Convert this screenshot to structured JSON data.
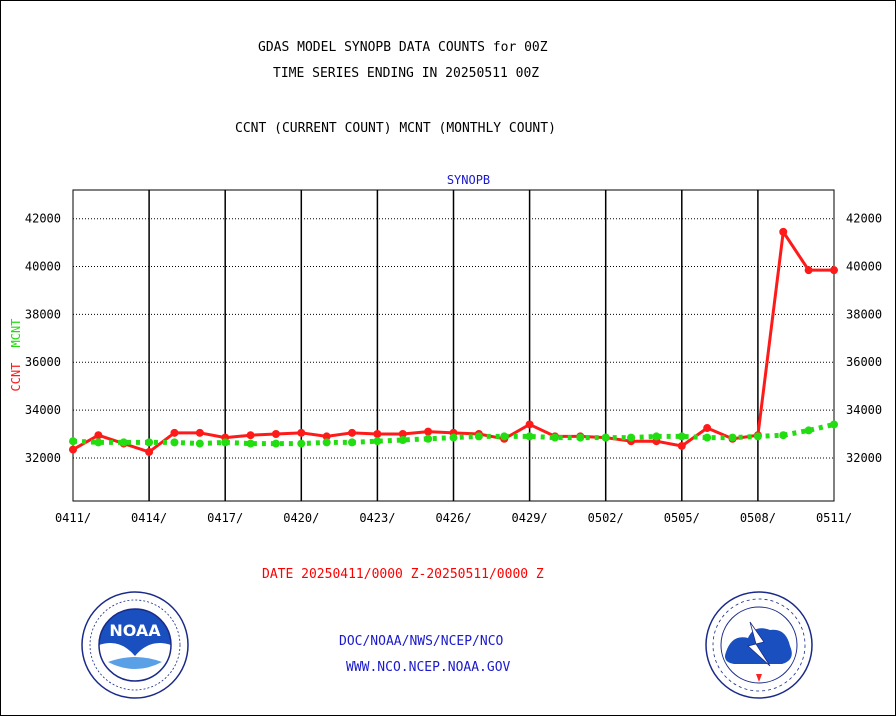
{
  "header": {
    "title_line1": "GDAS MODEL SYNOPB DATA COUNTS for 00Z",
    "title_line2": "TIME SERIES ENDING IN 20250511 00Z",
    "subtitle": "CCNT (CURRENT COUNT) MCNT (MONTHLY COUNT)"
  },
  "footer": {
    "date_range": "DATE 20250411/0000 Z-20250511/0000 Z",
    "agency_path": "DOC/NOAA/NWS/NCEP/NCO",
    "website": "WWW.NCO.NCEP.NOAA.GOV",
    "noaa_logo_text": "NOAA",
    "nws_logo_text": "NATIONAL WEATHER SERVICE"
  },
  "colors": {
    "ccnt": "#ff1a1a",
    "mcnt": "#22dd11",
    "panel_title": "#1a1acc",
    "footer_red": "#ff0000",
    "footer_blue": "#1a1acc"
  },
  "chart_data": {
    "type": "line",
    "title": "SYNOPB",
    "ylabel_parts": [
      "CCNT",
      "MCNT"
    ],
    "ylim": [
      30200,
      43200
    ],
    "yticks": [
      32000,
      34000,
      36000,
      38000,
      40000,
      42000
    ],
    "ytick_labels": [
      "32000",
      "34000",
      "36000",
      "38000",
      "40000",
      "42000"
    ],
    "xlim": [
      0,
      30
    ],
    "xtick_positions": [
      0,
      3,
      6,
      9,
      12,
      15,
      18,
      21,
      24,
      27,
      30
    ],
    "xtick_labels": [
      "0411/",
      "0414/",
      "0417/",
      "0420/",
      "0423/",
      "0426/",
      "0429/",
      "0502/",
      "0505/",
      "0508/",
      "0511/"
    ],
    "grid": true,
    "series": [
      {
        "name": "CCNT",
        "style": "solid",
        "x": [
          0,
          1,
          2,
          3,
          4,
          5,
          6,
          7,
          8,
          9,
          10,
          11,
          12,
          13,
          14,
          15,
          16,
          17,
          18,
          19,
          20,
          21,
          22,
          23,
          24,
          25,
          26,
          27,
          28,
          29,
          30
        ],
        "values": [
          32350,
          32950,
          32600,
          32250,
          33050,
          33050,
          32850,
          32950,
          33000,
          33050,
          32900,
          33050,
          33000,
          33000,
          33100,
          33050,
          33000,
          32800,
          33400,
          32900,
          32900,
          32850,
          32700,
          32700,
          32500,
          33250,
          32800,
          32950,
          41450,
          39850,
          39850
        ]
      },
      {
        "name": "MCNT",
        "style": "dotted",
        "x": [
          0,
          1,
          2,
          3,
          4,
          5,
          6,
          7,
          8,
          9,
          10,
          11,
          12,
          13,
          14,
          15,
          16,
          17,
          18,
          19,
          20,
          21,
          22,
          23,
          24,
          25,
          26,
          27,
          28,
          29,
          30
        ],
        "values": [
          32700,
          32650,
          32650,
          32650,
          32650,
          32600,
          32650,
          32600,
          32600,
          32600,
          32650,
          32650,
          32700,
          32750,
          32800,
          32850,
          32900,
          32900,
          32900,
          32850,
          32850,
          32850,
          32850,
          32900,
          32900,
          32850,
          32850,
          32900,
          32950,
          33150,
          33400
        ]
      }
    ]
  }
}
